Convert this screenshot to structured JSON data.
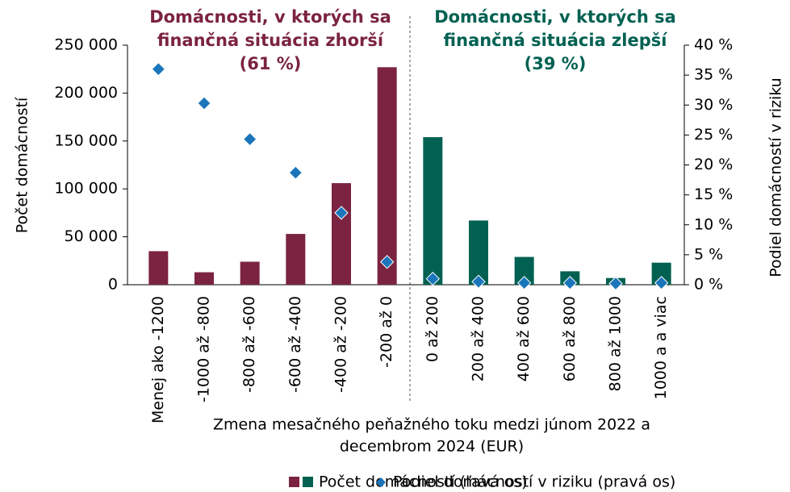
{
  "chart_data": {
    "type": "bar",
    "categories": [
      "Menej ako -1200",
      "-1000 až -800",
      "-800 až -600",
      "-600 až -400",
      "-400 až -200",
      "-200 až 0",
      "0 až 200",
      "200 až 400",
      "400 až 600",
      "600 až 800",
      "800 až 1000",
      "1000 a a viac"
    ],
    "series": [
      {
        "name": "Počet domácností (ľavá os)",
        "type": "bar",
        "colors": [
          "#7b2340",
          "#7b2340",
          "#7b2340",
          "#7b2340",
          "#7b2340",
          "#7b2340",
          "#006152",
          "#006152",
          "#006152",
          "#006152",
          "#006152",
          "#006152"
        ],
        "values": [
          35000,
          13000,
          24000,
          53000,
          106000,
          227000,
          154000,
          67000,
          29000,
          14000,
          7000,
          23000
        ]
      },
      {
        "name": "Podiel domácností v riziku (pravá os)",
        "type": "scatter",
        "axis": "y2",
        "color": "#1b75bb",
        "values": [
          36,
          30.3,
          24.3,
          18.7,
          12,
          3.8,
          1,
          0.5,
          0.3,
          0.3,
          0.2,
          0.3
        ]
      }
    ],
    "ylim": [
      0,
      250000
    ],
    "yticks": [
      0,
      {
        "value": 50000,
        "label": "50 000"
      },
      {
        "value": 100000,
        "label": "100 000"
      },
      {
        "value": 150000,
        "label": "150 000"
      },
      {
        "value": 200000,
        "label": "200 000"
      },
      {
        "value": 250000,
        "label": "250 000"
      }
    ],
    "y2lim": [
      0,
      40
    ],
    "y2ticks": [
      {
        "value": 0,
        "label": "0 %"
      },
      {
        "value": 5,
        "label": "5 %"
      },
      {
        "value": 10,
        "label": "10 %"
      },
      {
        "value": 15,
        "label": "15 %"
      },
      {
        "value": 20,
        "label": "20 %"
      },
      {
        "value": 25,
        "label": "25 %"
      },
      {
        "value": 30,
        "label": "30 %"
      },
      {
        "value": 35,
        "label": "35 %"
      },
      {
        "value": 40,
        "label": "40 %"
      }
    ],
    "ylabel": "Počet domácností",
    "y2label": "Podiel domácností v riziku",
    "xlabel": [
      "Zmena mesačného peňažného toku medzi júnom 2022 a",
      "decembrom 2024 (EUR)"
    ],
    "annotations": [
      {
        "lines": [
          "Domácnosti, v ktorých sa",
          "finančná situácia zhorší",
          "(61 %)"
        ],
        "color": "#7b2340"
      },
      {
        "lines": [
          "Domácnosti, v ktorých sa",
          "finančná situácia zlepší",
          "(39 %)"
        ],
        "color": "#006152"
      }
    ],
    "legend": "bottom"
  }
}
